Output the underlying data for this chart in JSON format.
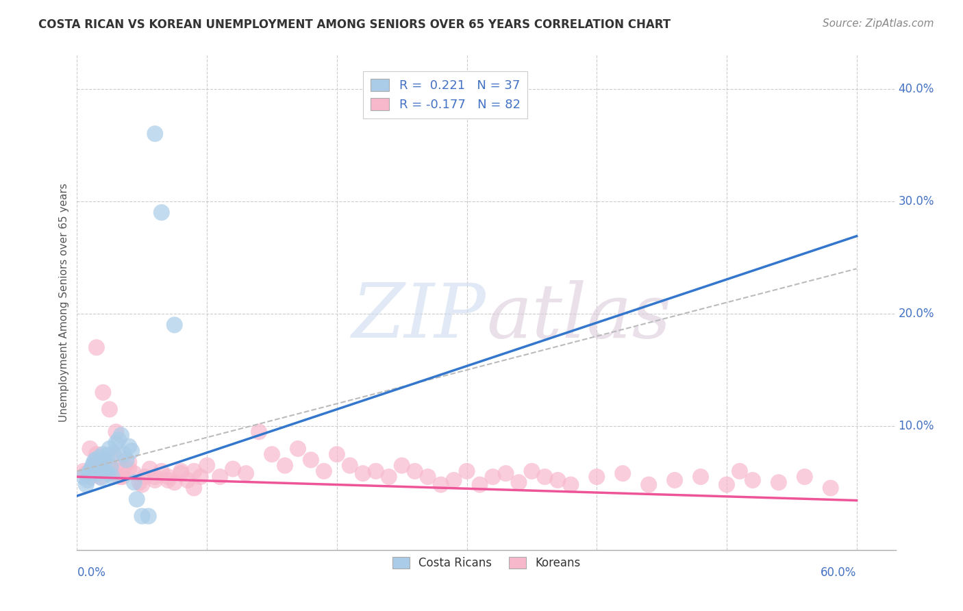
{
  "title": "COSTA RICAN VS KOREAN UNEMPLOYMENT AMONG SENIORS OVER 65 YEARS CORRELATION CHART",
  "source": "Source: ZipAtlas.com",
  "ylabel": "Unemployment Among Seniors over 65 years",
  "xlim": [
    0.0,
    0.63
  ],
  "ylim": [
    -0.01,
    0.43
  ],
  "xticks": [
    0.0,
    0.1,
    0.2,
    0.3,
    0.4,
    0.5,
    0.6
  ],
  "xticklabels_left": [
    "0.0%"
  ],
  "xticklabels_right": [
    "60.0%"
  ],
  "ytick_vals": [
    0.1,
    0.2,
    0.3,
    0.4
  ],
  "ytick_labels": [
    "10.0%",
    "20.0%",
    "30.0%",
    "40.0%"
  ],
  "background_color": "#ffffff",
  "grid_color": "#cccccc",
  "watermark_top": "ZIP",
  "watermark_bot": "atlas",
  "legend_line1": "R =  0.221   N = 37",
  "legend_line2": "R = -0.177   N = 82",
  "blue_color": "#aacce8",
  "pink_color": "#f7b8cc",
  "blue_line_color": "#3377cc",
  "pink_line_color": "#ee5599",
  "dashed_line_color": "#bbbbbb",
  "blue_intercept": 0.038,
  "blue_slope": 0.385,
  "pink_intercept": 0.055,
  "pink_slope": -0.035,
  "dash_intercept": 0.06,
  "dash_slope": 0.3,
  "cr_x": [
    0.005,
    0.007,
    0.008,
    0.009,
    0.01,
    0.011,
    0.012,
    0.013,
    0.014,
    0.015,
    0.016,
    0.017,
    0.018,
    0.019,
    0.02,
    0.021,
    0.022,
    0.023,
    0.024,
    0.025,
    0.026,
    0.027,
    0.028,
    0.03,
    0.032,
    0.034,
    0.036,
    0.038,
    0.04,
    0.042,
    0.044,
    0.046,
    0.05,
    0.055,
    0.06,
    0.065,
    0.075
  ],
  "cr_y": [
    0.055,
    0.048,
    0.052,
    0.058,
    0.06,
    0.062,
    0.065,
    0.068,
    0.07,
    0.063,
    0.058,
    0.072,
    0.066,
    0.054,
    0.075,
    0.069,
    0.06,
    0.074,
    0.058,
    0.08,
    0.064,
    0.055,
    0.076,
    0.085,
    0.088,
    0.092,
    0.075,
    0.07,
    0.082,
    0.078,
    0.05,
    0.035,
    0.02,
    0.02,
    0.36,
    0.29,
    0.19
  ],
  "kr_x": [
    0.005,
    0.007,
    0.01,
    0.012,
    0.015,
    0.018,
    0.02,
    0.022,
    0.025,
    0.028,
    0.03,
    0.033,
    0.036,
    0.04,
    0.044,
    0.048,
    0.052,
    0.056,
    0.06,
    0.065,
    0.07,
    0.075,
    0.08,
    0.085,
    0.09,
    0.095,
    0.1,
    0.11,
    0.12,
    0.13,
    0.14,
    0.15,
    0.16,
    0.17,
    0.18,
    0.19,
    0.2,
    0.21,
    0.22,
    0.23,
    0.24,
    0.25,
    0.26,
    0.27,
    0.28,
    0.29,
    0.3,
    0.31,
    0.32,
    0.33,
    0.34,
    0.35,
    0.36,
    0.37,
    0.38,
    0.4,
    0.42,
    0.44,
    0.46,
    0.48,
    0.5,
    0.51,
    0.52,
    0.54,
    0.56,
    0.58,
    0.01,
    0.015,
    0.02,
    0.025,
    0.03,
    0.035,
    0.04,
    0.05,
    0.06,
    0.07,
    0.08,
    0.09,
    0.015,
    0.02,
    0.025,
    0.03
  ],
  "kr_y": [
    0.06,
    0.058,
    0.055,
    0.062,
    0.068,
    0.055,
    0.07,
    0.06,
    0.065,
    0.058,
    0.072,
    0.055,
    0.062,
    0.068,
    0.058,
    0.05,
    0.055,
    0.062,
    0.052,
    0.06,
    0.055,
    0.05,
    0.058,
    0.052,
    0.06,
    0.055,
    0.065,
    0.055,
    0.062,
    0.058,
    0.095,
    0.075,
    0.065,
    0.08,
    0.07,
    0.06,
    0.075,
    0.065,
    0.058,
    0.06,
    0.055,
    0.065,
    0.06,
    0.055,
    0.048,
    0.052,
    0.06,
    0.048,
    0.055,
    0.058,
    0.05,
    0.06,
    0.055,
    0.052,
    0.048,
    0.055,
    0.058,
    0.048,
    0.052,
    0.055,
    0.048,
    0.06,
    0.052,
    0.05,
    0.055,
    0.045,
    0.08,
    0.075,
    0.07,
    0.065,
    0.06,
    0.055,
    0.062,
    0.048,
    0.055,
    0.052,
    0.06,
    0.045,
    0.17,
    0.13,
    0.115,
    0.095
  ]
}
